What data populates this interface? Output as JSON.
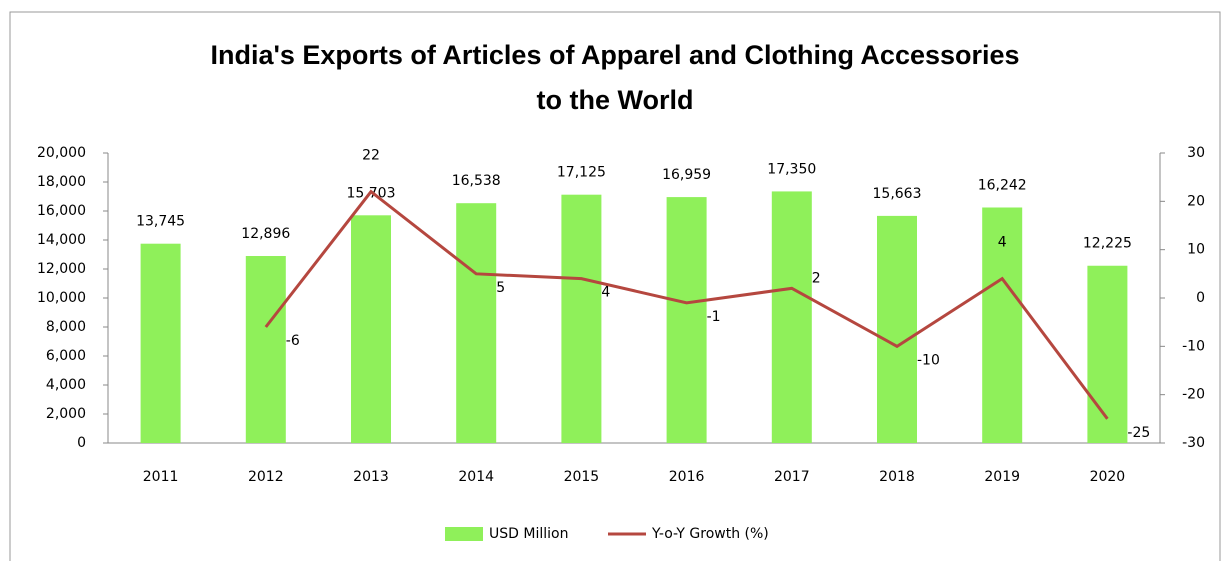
{
  "chart_data": {
    "type": "bar-line",
    "title": [
      "India's Exports of Articles of Apparel and Clothing Accessories",
      "to the World"
    ],
    "categories": [
      "2011",
      "2012",
      "2013",
      "2014",
      "2015",
      "2016",
      "2017",
      "2018",
      "2019",
      "2020"
    ],
    "series": [
      {
        "name": "USD Million",
        "type": "bar",
        "color": "#8ff05a",
        "values": [
          13745,
          12896,
          15703,
          16538,
          17125,
          16959,
          17350,
          15663,
          16242,
          12225
        ],
        "value_labels": [
          "13,745",
          "12,896",
          "15,703",
          "16,538",
          "17,125",
          "16,959",
          "17,350",
          "15,663",
          "16,242",
          "12,225"
        ]
      },
      {
        "name": "Y-o-Y Growth (%)",
        "type": "line",
        "axis": "y2",
        "color": "#b5473f",
        "values": [
          null,
          -6,
          22,
          5,
          4,
          -1,
          2,
          -10,
          4,
          -25
        ]
      }
    ],
    "ylim": [
      0,
      20000
    ],
    "yticks": [
      0,
      {
        "value": 2000,
        "label": "2,000"
      },
      {
        "value": 4000,
        "label": "4,000"
      },
      {
        "value": 6000,
        "label": "6,000"
      },
      {
        "value": 8000,
        "label": "8,000"
      },
      {
        "value": 10000,
        "label": "10,000"
      },
      {
        "value": 12000,
        "label": "12,000"
      },
      {
        "value": 14000,
        "label": "14,000"
      },
      {
        "value": 16000,
        "label": "16,000"
      },
      {
        "value": 18000,
        "label": "18,000"
      },
      {
        "value": 20000,
        "label": "20,000"
      }
    ],
    "y2lim": [
      -30,
      30
    ],
    "y2ticks": [
      -30,
      -20,
      -10,
      0,
      10,
      20,
      30
    ],
    "grid": false,
    "legend": "bottom"
  }
}
